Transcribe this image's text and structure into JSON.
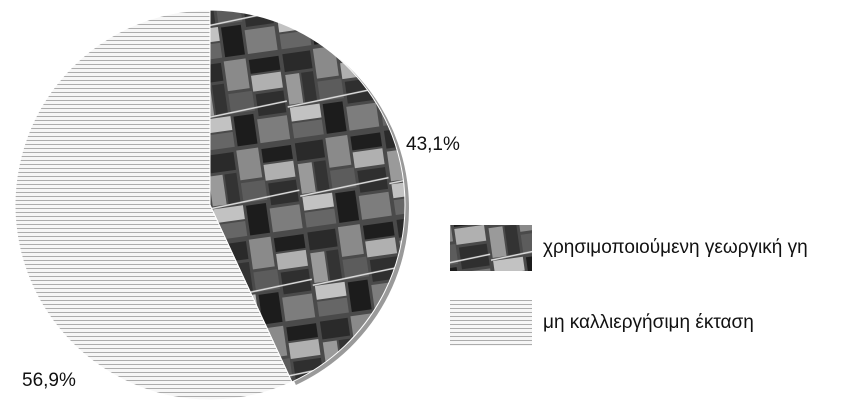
{
  "chart_data": {
    "type": "pie",
    "categories": [
      "χρησιμοποιούμενη γεωργική γη",
      "μη καλλιεργήσιμη έκταση"
    ],
    "values": [
      43.1,
      56.9
    ],
    "value_labels": [
      "43,1%",
      "56,9%"
    ],
    "colors": [
      "#4a4a4a",
      "#f6f6f6"
    ]
  }
}
